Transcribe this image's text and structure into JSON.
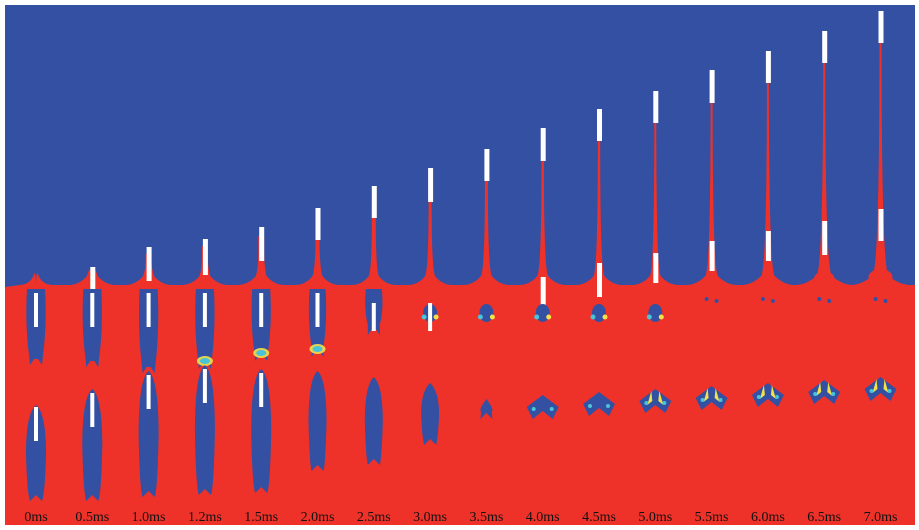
{
  "figure": {
    "description_domain": "cavity-evolution",
    "colors": {
      "gas": "#3350A3",
      "water": "#EE3229",
      "projectile": "#FFFFFF",
      "contour_warm": "#F3E14A",
      "contour_cool": "#48C3D8"
    },
    "time_labels": [
      "0ms",
      "0.5ms",
      "1.0ms",
      "1.2ms",
      "1.5ms",
      "2.0ms",
      "2.5ms",
      "3.0ms",
      "3.5ms",
      "4.0ms",
      "4.5ms",
      "5.0ms",
      "5.5ms",
      "6.0ms",
      "6.5ms",
      "7.0ms"
    ]
  }
}
